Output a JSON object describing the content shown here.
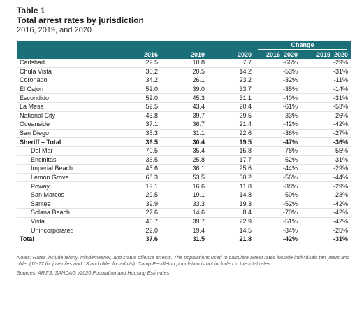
{
  "label": "Table 1",
  "title": "Total arrest rates by jurisdiction",
  "subtitle": "2016, 2019, and 2020",
  "headers": {
    "group": "Change",
    "columns": [
      "",
      "2016",
      "2019",
      "2020",
      "2016–2020",
      "2019–2020"
    ]
  },
  "rows": [
    {
      "name": "Carlsbad",
      "y2016": "22.5",
      "y2019": "10.8",
      "y2020": "7.7",
      "c1620": "-66%",
      "c1920": "-29%"
    },
    {
      "name": "Chula Vista",
      "y2016": "30.2",
      "y2019": "20.5",
      "y2020": "14.2",
      "c1620": "-53%",
      "c1920": "-31%"
    },
    {
      "name": "Coronado",
      "y2016": "34.2",
      "y2019": "26.1",
      "y2020": "23.2",
      "c1620": "-32%",
      "c1920": "-11%"
    },
    {
      "name": "El Cajon",
      "y2016": "52.0",
      "y2019": "39.0",
      "y2020": "33.7",
      "c1620": "-35%",
      "c1920": "-14%"
    },
    {
      "name": "Escondido",
      "y2016": "52.0",
      "y2019": "45.3",
      "y2020": "31.1",
      "c1620": "-40%",
      "c1920": "-31%"
    },
    {
      "name": "La Mesa",
      "y2016": "52.5",
      "y2019": "43.4",
      "y2020": "20.4",
      "c1620": "-61%",
      "c1920": "-53%"
    },
    {
      "name": "National City",
      "y2016": "43.8",
      "y2019": "39.7",
      "y2020": "29.5",
      "c1620": "-33%",
      "c1920": "-26%"
    },
    {
      "name": "Oceanside",
      "y2016": "37.1",
      "y2019": "36.7",
      "y2020": "21.4",
      "c1620": "-42%",
      "c1920": "-42%"
    },
    {
      "name": "San Diego",
      "y2016": "35.3",
      "y2019": "31.1",
      "y2020": "22.6",
      "c1620": "-36%",
      "c1920": "-27%"
    },
    {
      "name": "Sheriff – Total",
      "y2016": "36.5",
      "y2019": "30.4",
      "y2020": "19.5",
      "c1620": "-47%",
      "c1920": "-36%"
    },
    {
      "name": "Del Mar",
      "y2016": "70.5",
      "y2019": "35.4",
      "y2020": "15.8",
      "c1620": "-78%",
      "c1920": "-55%"
    },
    {
      "name": "Encinitas",
      "y2016": "36.5",
      "y2019": "25.8",
      "y2020": "17.7",
      "c1620": "-52%",
      "c1920": "-31%"
    },
    {
      "name": "Imperial Beach",
      "y2016": "45.6",
      "y2019": "36.1",
      "y2020": "25.6",
      "c1620": "-44%",
      "c1920": "-29%"
    },
    {
      "name": "Lemon Grove",
      "y2016": "68.3",
      "y2019": "53.5",
      "y2020": "30.2",
      "c1620": "-56%",
      "c1920": "-44%"
    },
    {
      "name": "Poway",
      "y2016": "19.1",
      "y2019": "16.6",
      "y2020": "11.8",
      "c1620": "-38%",
      "c1920": "-29%"
    },
    {
      "name": "San Marcos",
      "y2016": "29.5",
      "y2019": "19.1",
      "y2020": "14.8",
      "c1620": "-50%",
      "c1920": "-23%"
    },
    {
      "name": "Santee",
      "y2016": "39.9",
      "y2019": "33.3",
      "y2020": "19.3",
      "c1620": "-52%",
      "c1920": "-42%"
    },
    {
      "name": "Solana Beach",
      "y2016": "27.6",
      "y2019": "14.6",
      "y2020": "8.4",
      "c1620": "-70%",
      "c1920": "-42%"
    },
    {
      "name": "Vista",
      "y2016": "46.7",
      "y2019": "39.7",
      "y2020": "22.9",
      "c1620": "-51%",
      "c1920": "-42%"
    },
    {
      "name": "Unincorporated",
      "y2016": "22.0",
      "y2019": "19.4",
      "y2020": "14.5",
      "c1620": "-34%",
      "c1920": "-25%"
    },
    {
      "name": "Total",
      "y2016": "37.6",
      "y2019": "31.5",
      "y2020": "21.8",
      "c1620": "-42%",
      "c1920": "-31%"
    }
  ],
  "notes": "Notes: Rates include felony, misdemeanor, and status offense arrests. The populations used to calculate arrest rates include individuals ten years and older (10-17 for juveniles and 18 and older for adults). Camp Pendleton population is not included in the total rates.",
  "sources": "Sources: ARJIS; SANDAG v2020 Population and Housing Estimates",
  "colors": {
    "header": "#1a6f78"
  }
}
